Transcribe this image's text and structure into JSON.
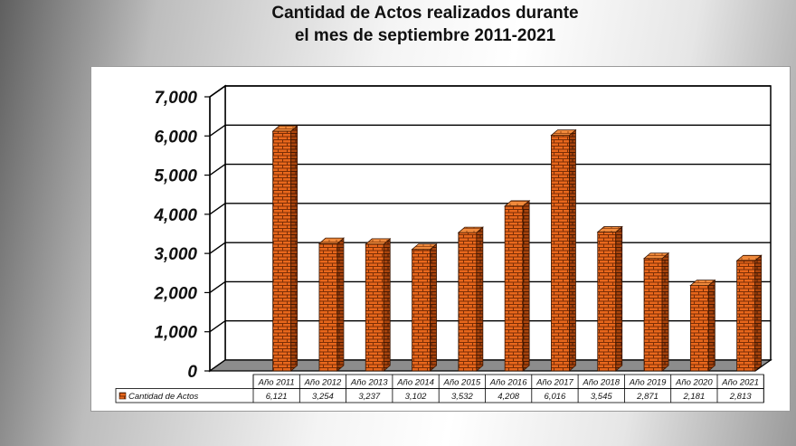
{
  "chart_data": {
    "type": "bar",
    "title_line1": "Cantidad de Actos realizados durante",
    "title_line2": "el mes de septiembre 2011-2021",
    "categories": [
      "Año 2011",
      "Año 2012",
      "Año 2013",
      "Año 2014",
      "Año 2015",
      "Año 2016",
      "Año 2017",
      "Año 2018",
      "Año 2019",
      "Año 2020",
      "Año 2021"
    ],
    "series": [
      {
        "name": "Cantidad de Actos",
        "values": [
          6121,
          3254,
          3237,
          3102,
          3532,
          4208,
          6016,
          3545,
          2871,
          2181,
          2813
        ],
        "labels": [
          "6,121",
          "3,254",
          "3,237",
          "3,102",
          "3,532",
          "4,208",
          "6,016",
          "3,545",
          "2,871",
          "2,181",
          "2,813"
        ]
      }
    ],
    "ylim": [
      0,
      7000
    ],
    "yticks": [
      0,
      1000,
      2000,
      3000,
      4000,
      5000,
      6000,
      7000
    ],
    "ytick_labels": [
      "0",
      "1,000",
      "2,000",
      "3,000",
      "4,000",
      "5,000",
      "6,000",
      "7,000"
    ],
    "grid": true,
    "legend": "data-table-left",
    "bar_color": "#e2661c",
    "bar_style": "3d-brick"
  }
}
